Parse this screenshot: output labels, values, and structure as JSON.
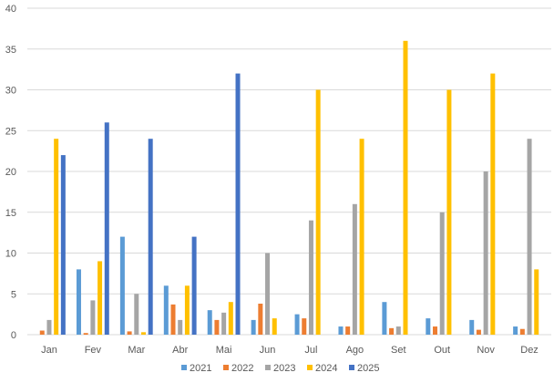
{
  "chart_data": {
    "type": "bar",
    "title": "",
    "xlabel": "",
    "ylabel": "",
    "ylim": [
      0,
      40
    ],
    "yticks": [
      0,
      5,
      10,
      15,
      20,
      25,
      30,
      35,
      40
    ],
    "grid": true,
    "legend_position": "bottom",
    "categories": [
      "Jan",
      "Fev",
      "Mar",
      "Abr",
      "Mai",
      "Jun",
      "Jul",
      "Ago",
      "Set",
      "Out",
      "Nov",
      "Dez"
    ],
    "series": [
      {
        "name": "2021",
        "color": "#5B9BD5",
        "values": [
          0,
          8,
          12,
          6,
          3,
          1.8,
          2.5,
          1,
          4,
          2,
          1.8,
          1
        ]
      },
      {
        "name": "2022",
        "color": "#ED7D31",
        "values": [
          0.5,
          0.2,
          0.4,
          3.7,
          1.8,
          3.8,
          2,
          1,
          0.8,
          1,
          0.6,
          0.7
        ]
      },
      {
        "name": "2023",
        "color": "#A5A5A5",
        "values": [
          1.8,
          4.2,
          5,
          1.8,
          2.7,
          10,
          14,
          16,
          1,
          15,
          20,
          24
        ]
      },
      {
        "name": "2024",
        "color": "#FFC000",
        "values": [
          24,
          9,
          0.3,
          6,
          4,
          2,
          30,
          24,
          36,
          30,
          32,
          8
        ]
      },
      {
        "name": "2025",
        "color": "#4472C4",
        "values": [
          22,
          26,
          24,
          12,
          32,
          0,
          0,
          0,
          0,
          0,
          0,
          0
        ]
      }
    ]
  }
}
